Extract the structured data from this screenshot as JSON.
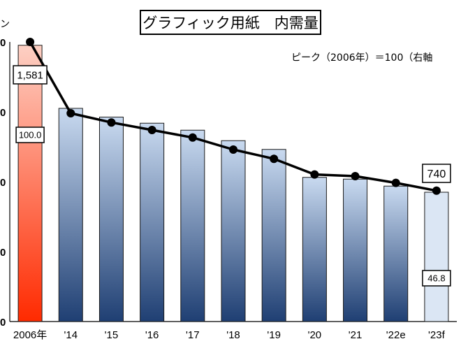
{
  "chart_data": {
    "type": "bar",
    "title": "グラフィック用紙　内需量",
    "unit_label": "ン",
    "note": "ピーク（2006年）＝100（右軸",
    "categories": [
      "2006年",
      "'14",
      "'15",
      "'16",
      "'17",
      "'18",
      "'19",
      "'20",
      "'21",
      "'22e",
      "'23f"
    ],
    "series": [
      {
        "values": [
          1581,
          1220,
          1170,
          1135,
          1095,
          1035,
          985,
          825,
          815,
          775,
          740
        ]
      },
      {
        "values": [
          100.0,
          74.5,
          71.2,
          68.5,
          65.8,
          61.5,
          58.2,
          52.6,
          52.0,
          49.6,
          46.8
        ]
      }
    ],
    "bar_labels": {
      "0": "1,581",
      "10": "740"
    },
    "line_labels": {
      "0": "100.0",
      "10": "46.8"
    },
    "left_axis_ticks": [
      "0",
      "0",
      "0",
      "0",
      "0"
    ],
    "ylim": [
      0,
      1600
    ],
    "y2lim": [
      0,
      100
    ],
    "grid": false,
    "colors": {
      "peak_bar_top": "#fdd0c4",
      "peak_bar_bottom": "#ff2a00",
      "bar_top": "#c9daf0",
      "bar_bottom": "#1f3f73",
      "forecast_bar": "#dbe6f4",
      "line": "#000000"
    }
  }
}
